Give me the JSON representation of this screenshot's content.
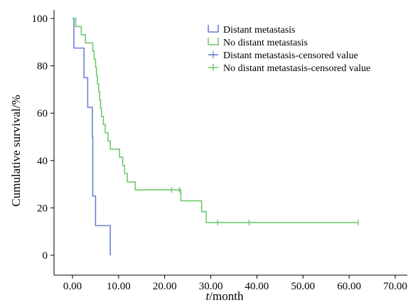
{
  "chart_data": {
    "type": "line",
    "subtype": "kaplan-meier-step",
    "title": "",
    "xlabel_italic": "t",
    "xlabel_rest": "/month",
    "ylabel": "Cumulative survival/%",
    "xlim": [
      0,
      70
    ],
    "ylim": [
      0,
      100
    ],
    "x_ticks": [
      "0.00",
      "10.00",
      "20.00",
      "30.00",
      "40.00",
      "50.00",
      "60.00",
      "70.00"
    ],
    "x_tick_values": [
      0,
      10,
      20,
      30,
      40,
      50,
      60,
      70
    ],
    "y_ticks": [
      "0",
      "20",
      "40",
      "60",
      "80",
      "100"
    ],
    "y_tick_values": [
      0,
      20,
      40,
      60,
      80,
      100
    ],
    "grid": false,
    "legend_position": "top-right",
    "legend": [
      {
        "label": "Distant metastasis",
        "series": "distant",
        "kind": "step"
      },
      {
        "label": "No distant metastasis",
        "series": "no_distant",
        "kind": "step"
      },
      {
        "label": "Distant metastasis-censored value",
        "series": "distant",
        "kind": "censor"
      },
      {
        "label": "No distant metastasis-censored value",
        "series": "no_distant",
        "kind": "censor"
      }
    ],
    "series": [
      {
        "id": "distant",
        "name": "Distant metastasis",
        "color": "#6b7fd6",
        "steps": [
          [
            0,
            100
          ],
          [
            0.3,
            87.5
          ],
          [
            2.5,
            75
          ],
          [
            3.3,
            62.5
          ],
          [
            4.3,
            50
          ],
          [
            4.4,
            25
          ],
          [
            5.0,
            12.5
          ],
          [
            8.2,
            0
          ]
        ],
        "censored": []
      },
      {
        "id": "no_distant",
        "name": "No distant metastasis",
        "color": "#6fca6f",
        "steps": [
          [
            0,
            100
          ],
          [
            0.7,
            96.6
          ],
          [
            1.9,
            93.1
          ],
          [
            2.8,
            89.7
          ],
          [
            4.4,
            86.2
          ],
          [
            4.7,
            82.8
          ],
          [
            5.0,
            79.3
          ],
          [
            5.2,
            75.9
          ],
          [
            5.4,
            72.4
          ],
          [
            5.7,
            69.0
          ],
          [
            5.9,
            65.5
          ],
          [
            6.1,
            62.1
          ],
          [
            6.3,
            58.6
          ],
          [
            6.7,
            55.2
          ],
          [
            7.1,
            51.7
          ],
          [
            7.7,
            48.3
          ],
          [
            8.2,
            44.8
          ],
          [
            10.2,
            41.4
          ],
          [
            10.9,
            37.9
          ],
          [
            11.3,
            34.5
          ],
          [
            11.9,
            31.0
          ],
          [
            13.6,
            27.6
          ],
          [
            23.5,
            23.0
          ],
          [
            28.0,
            18.4
          ],
          [
            29.0,
            13.8
          ],
          [
            62.0,
            13.8
          ]
        ],
        "censored": [
          [
            21.5,
            27.6
          ],
          [
            23.2,
            27.6
          ],
          [
            31.5,
            13.8
          ],
          [
            38.3,
            13.8
          ],
          [
            62.0,
            13.8
          ]
        ]
      }
    ]
  }
}
